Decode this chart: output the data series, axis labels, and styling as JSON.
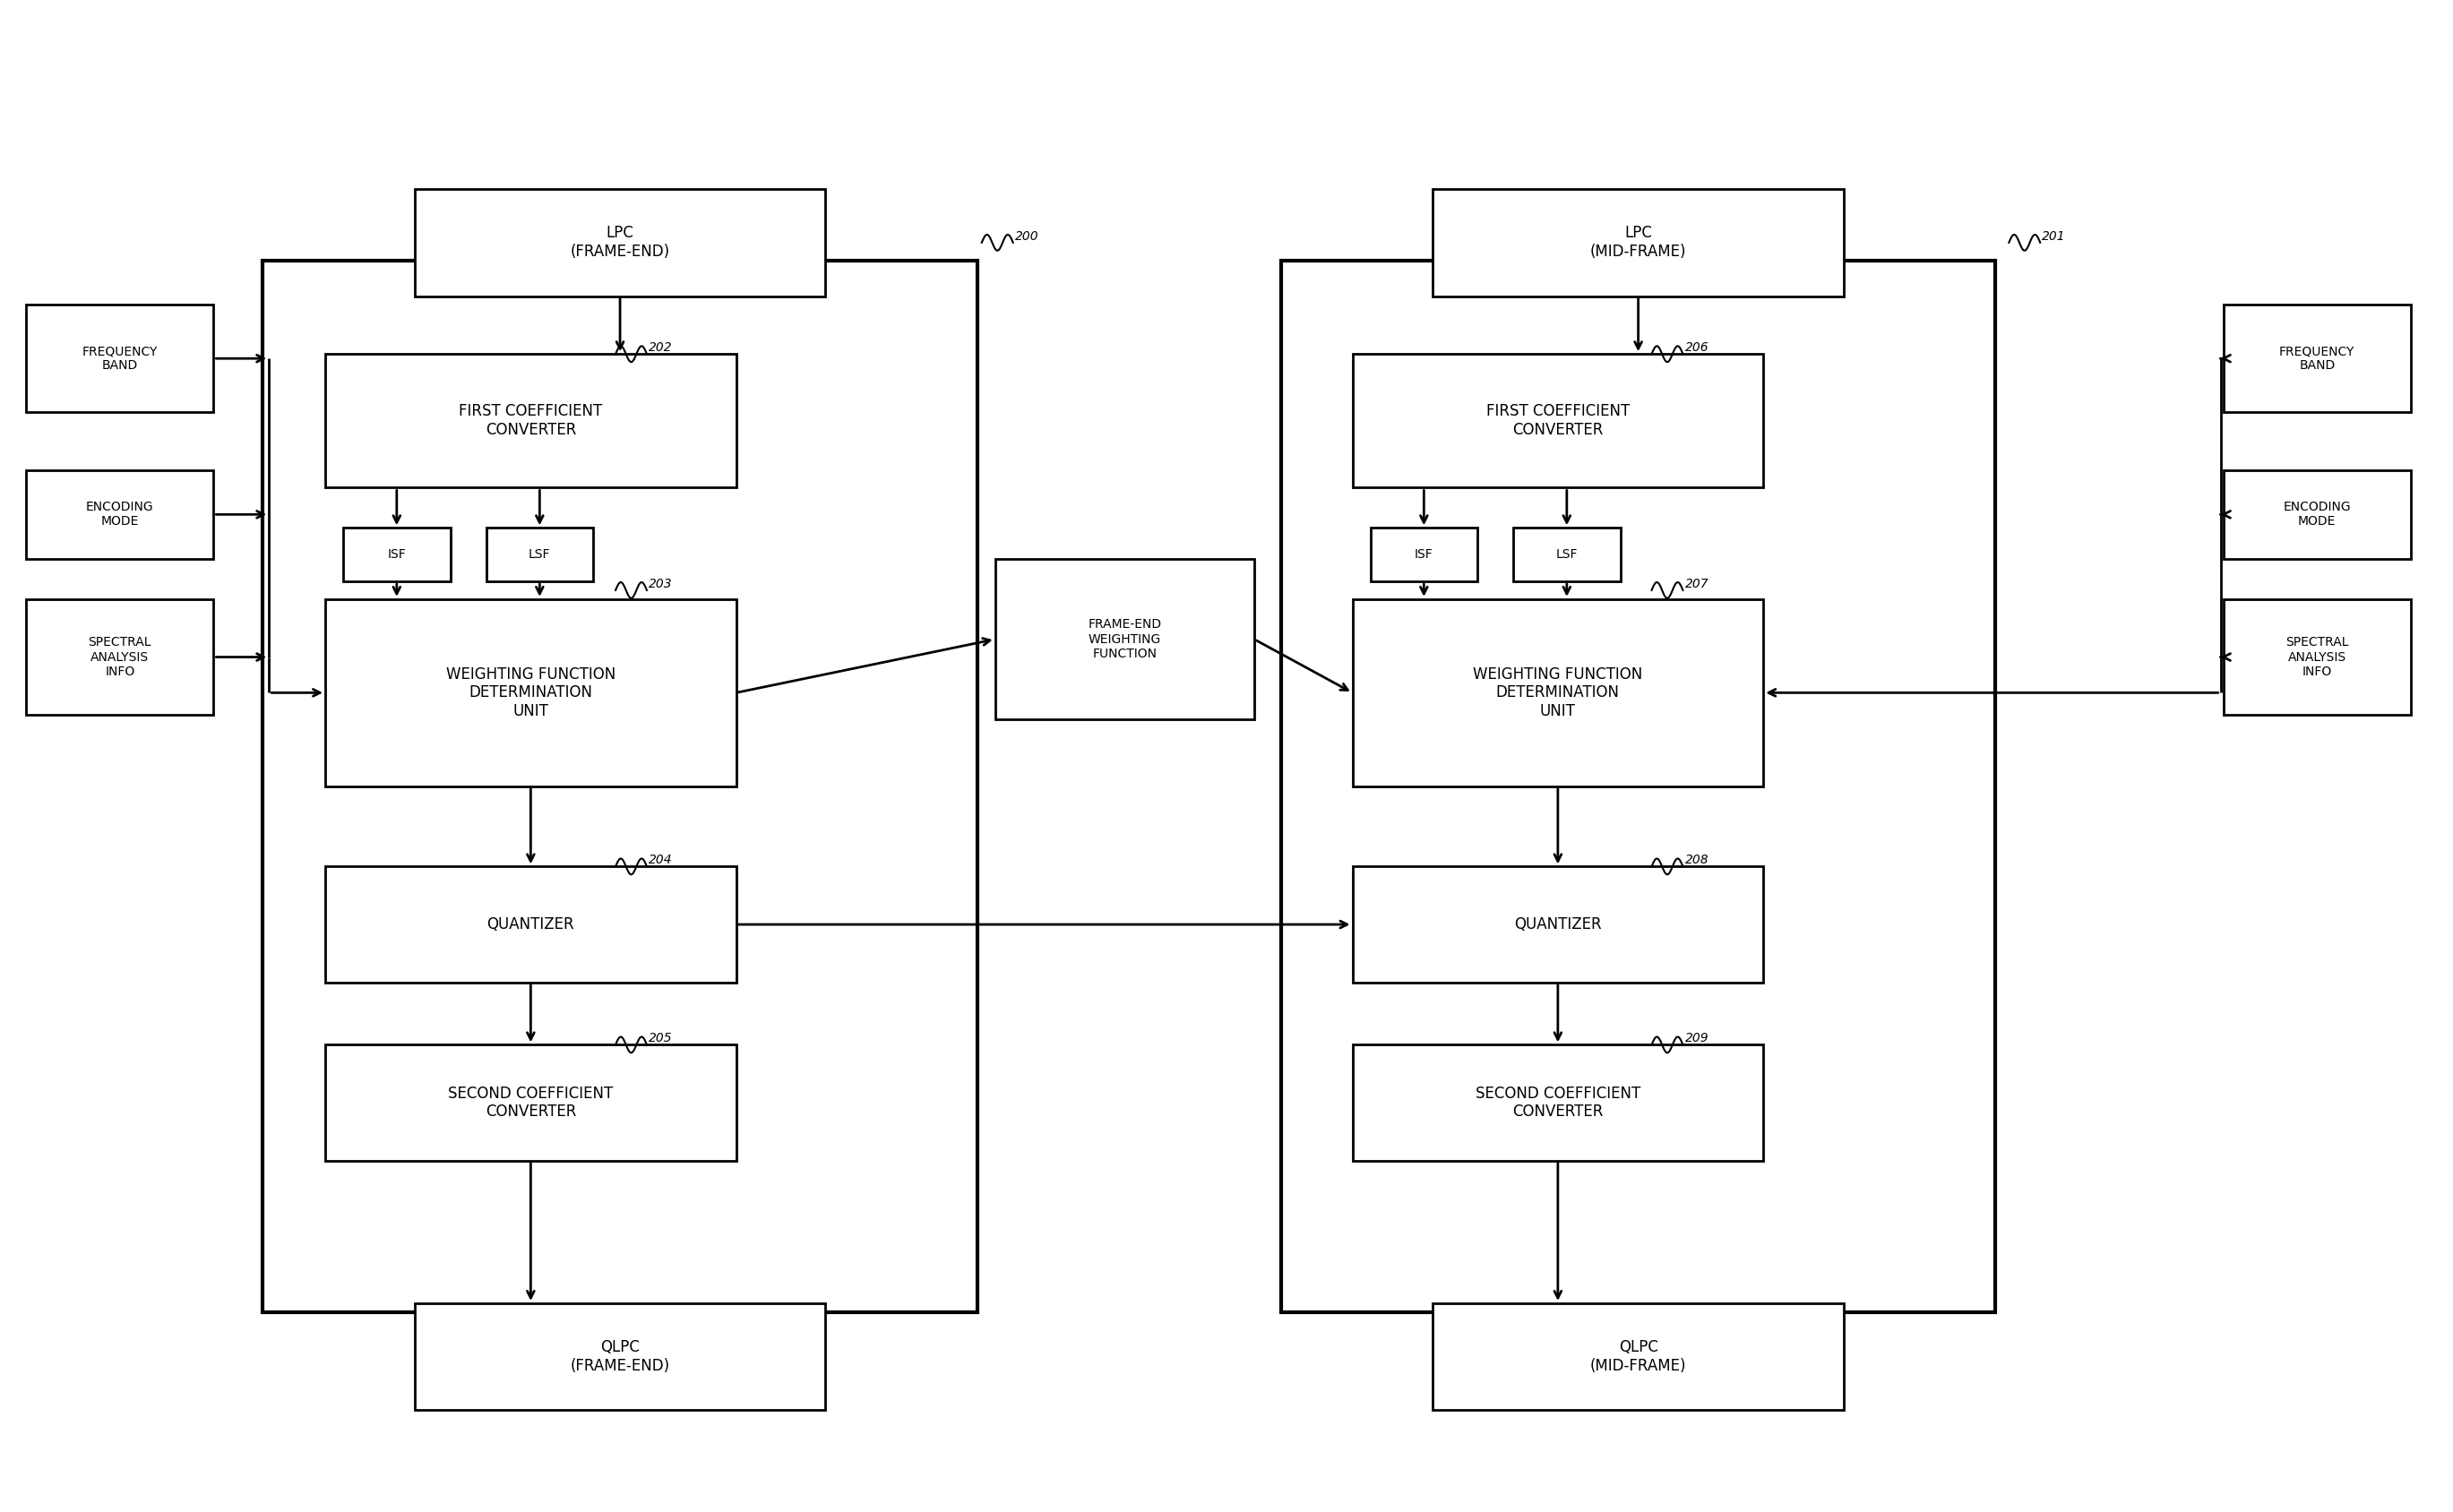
{
  "bg_color": "#ffffff",
  "box_color": "#ffffff",
  "box_edge_color": "#000000",
  "text_color": "#000000",
  "arrow_color": "#000000",
  "line_width": 2.0,
  "font_size": 12,
  "small_font_size": 10,
  "label_font_size": 9,
  "left_lpc_label": "LPC\n(FRAME-END)",
  "right_lpc_label": "LPC\n(MID-FRAME)",
  "left_qlpc_label": "QLPC\n(FRAME-END)",
  "right_qlpc_label": "QLPC\n(MID-FRAME)",
  "left_fcc_label": "FIRST COEFFICIENT\nCONVERTER",
  "right_fcc_label": "FIRST COEFFICIENT\nCONVERTER",
  "left_wfdu_label": "WEIGHTING FUNCTION\nDETERMINATION\nUNIT",
  "right_wfdu_label": "WEIGHTING FUNCTION\nDETERMINATION\nUNIT",
  "left_quant_label": "QUANTIZER",
  "right_quant_label": "QUANTIZER",
  "left_scc_label": "SECOND COEFFICIENT\nCONVERTER",
  "right_scc_label": "SECOND COEFFICIENT\nCONVERTER",
  "freq_band_label": "FREQUENCY\nBAND",
  "enc_mode_label": "ENCODING\nMODE",
  "spec_anal_label": "SPECTRAL\nANALYSIS\nINFO",
  "isf_label": "ISF",
  "lsf_label": "LSF",
  "frame_end_wf_label": "FRAME-END\nWEIGHTING\nFUNCTION",
  "ref_200": "200",
  "ref_201": "201",
  "ref_202": "202",
  "ref_203": "203",
  "ref_204": "204",
  "ref_205": "205",
  "ref_206": "206",
  "ref_207": "207",
  "ref_208": "208",
  "ref_209": "209"
}
